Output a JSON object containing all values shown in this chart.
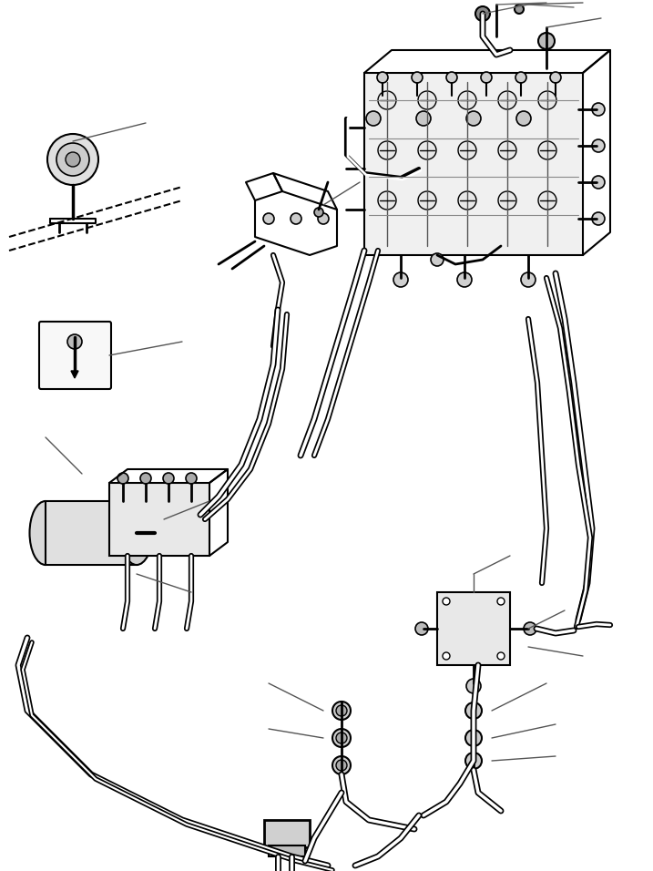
{
  "title": "",
  "bg_color": "#ffffff",
  "line_color": "#000000",
  "fig_width": 7.17,
  "fig_height": 9.56,
  "dpi": 100
}
